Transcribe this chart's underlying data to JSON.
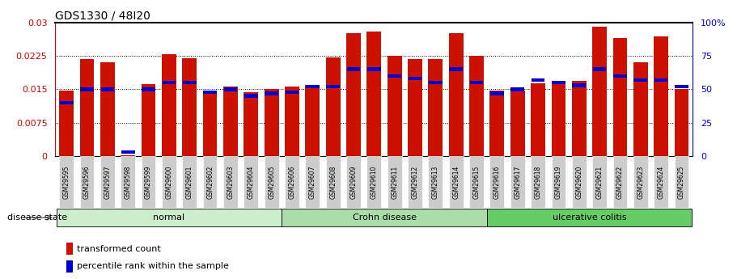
{
  "title": "GDS1330 / 48I20",
  "samples": [
    "GSM29595",
    "GSM29596",
    "GSM29597",
    "GSM29598",
    "GSM29599",
    "GSM29600",
    "GSM29601",
    "GSM29602",
    "GSM29603",
    "GSM29604",
    "GSM29605",
    "GSM29606",
    "GSM29607",
    "GSM29608",
    "GSM29609",
    "GSM29610",
    "GSM29611",
    "GSM29612",
    "GSM29613",
    "GSM29614",
    "GSM29615",
    "GSM29616",
    "GSM29617",
    "GSM29618",
    "GSM29619",
    "GSM29620",
    "GSM29621",
    "GSM29622",
    "GSM29623",
    "GSM29624",
    "GSM29625"
  ],
  "transformed_count": [
    0.0148,
    0.0218,
    0.021,
    0.0002,
    0.0162,
    0.0228,
    0.022,
    0.0147,
    0.0157,
    0.0143,
    0.015,
    0.0157,
    0.016,
    0.0222,
    0.0275,
    0.028,
    0.0225,
    0.0218,
    0.0218,
    0.0275,
    0.0225,
    0.0147,
    0.0147,
    0.0163,
    0.0168,
    0.0168,
    0.029,
    0.0265,
    0.021,
    0.0268,
    0.015
  ],
  "percentile_rank": [
    40,
    50,
    50,
    3,
    50,
    55,
    55,
    48,
    50,
    45,
    47,
    48,
    52,
    52,
    65,
    65,
    60,
    58,
    55,
    65,
    55,
    47,
    50,
    57,
    55,
    53,
    65,
    60,
    57,
    57,
    52
  ],
  "groups": [
    {
      "label": "normal",
      "start": 0,
      "end": 11,
      "color": "#cceecc"
    },
    {
      "label": "Crohn disease",
      "start": 11,
      "end": 21,
      "color": "#aaddaa"
    },
    {
      "label": "ulcerative colitis",
      "start": 21,
      "end": 31,
      "color": "#66cc66"
    }
  ],
  "bar_color_red": "#cc1100",
  "bar_color_blue": "#0000cc",
  "ylim_left": [
    0,
    0.03
  ],
  "ylim_right": [
    0,
    100
  ],
  "yticks_left": [
    0,
    0.0075,
    0.015,
    0.0225,
    0.03
  ],
  "yticks_left_labels": [
    "0",
    "0.0075",
    "0.015",
    "0.0225",
    "0.03"
  ],
  "yticks_right": [
    0,
    25,
    50,
    75,
    100
  ],
  "yticks_right_labels": [
    "0",
    "25",
    "50",
    "75",
    "100%"
  ],
  "background_color": "#ffffff",
  "title_fontsize": 10,
  "axis_label_color_left": "#cc0000",
  "axis_label_color_right": "#0000cc",
  "legend_label_red": "transformed count",
  "legend_label_blue": "percentile rank within the sample",
  "disease_state_label": "disease state",
  "tick_label_bg": "#cccccc",
  "bar_width": 0.7
}
